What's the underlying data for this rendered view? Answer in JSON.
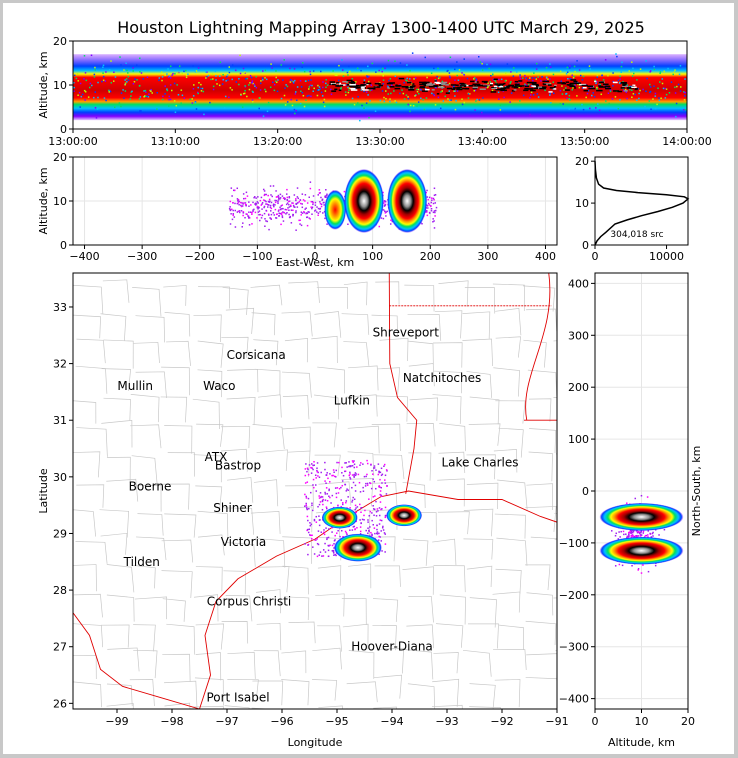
{
  "title": "Houston Lightning Mapping Array 1300-1400 UTC March 29, 2025",
  "colors": {
    "density_scale": [
      "#8000ff",
      "#0040ff",
      "#00c0ff",
      "#00e060",
      "#c0ff00",
      "#ffff00",
      "#ffa000",
      "#ff0000",
      "#a00000",
      "#000000",
      "#ffffff"
    ],
    "state_border": "#e00000",
    "county_border": "#c8c8c8",
    "coast": "#e00000"
  },
  "chart_data": [
    {
      "type": "heatmap",
      "name": "altitude_vs_time",
      "ylabel": "Altitude, km",
      "ylim": [
        0,
        20
      ],
      "y_ticks": [
        "0",
        "10",
        "20"
      ],
      "x_ticks": [
        "13:00:00",
        "13:10:00",
        "13:20:00",
        "13:30:00",
        "13:40:00",
        "13:50:00",
        "14:00:00"
      ],
      "core_altitude_km": [
        8,
        14
      ],
      "peak_density_interval": [
        "13:25:00",
        "13:55:00"
      ]
    },
    {
      "type": "heatmap",
      "name": "altitude_vs_east_west",
      "xlabel": "East-West, km",
      "ylabel": "Altitude, km",
      "xlim": [
        -420,
        420
      ],
      "ylim": [
        0,
        20
      ],
      "x_ticks": [
        "−400",
        "−300",
        "−200",
        "−100",
        "0",
        "100",
        "200",
        "300",
        "400"
      ],
      "y_ticks": [
        "0",
        "10",
        "20"
      ],
      "cores": [
        {
          "x_km": 85,
          "alt_km": 10
        },
        {
          "x_km": 160,
          "alt_km": 10
        },
        {
          "x_km": 35,
          "alt_km": 8
        }
      ]
    },
    {
      "type": "line",
      "name": "source_altitude_histogram",
      "x_ticks": [
        "0",
        "10000"
      ],
      "y_ticks": [
        "0",
        "10",
        "20"
      ],
      "xlim": [
        0,
        13000
      ],
      "ylim": [
        0,
        21
      ],
      "annotation": "304,018 src",
      "points": [
        [
          0,
          0
        ],
        [
          300,
          1
        ],
        [
          800,
          2
        ],
        [
          1500,
          3
        ],
        [
          2800,
          5
        ],
        [
          4500,
          6
        ],
        [
          6500,
          7
        ],
        [
          8800,
          8
        ],
        [
          10800,
          9
        ],
        [
          12300,
          10
        ],
        [
          13000,
          11
        ],
        [
          12500,
          11.5
        ],
        [
          10000,
          12
        ],
        [
          6000,
          12.5
        ],
        [
          3000,
          13
        ],
        [
          1200,
          13.6
        ],
        [
          500,
          14.5
        ],
        [
          200,
          16
        ],
        [
          60,
          18
        ],
        [
          0,
          20
        ]
      ]
    },
    {
      "type": "scatter",
      "name": "plan_view_map",
      "xlabel": "Longitude",
      "ylabel": "Latitude",
      "xlim": [
        -99.8,
        -91
      ],
      "ylim": [
        25.9,
        33.6
      ],
      "x_ticks": [
        "−99",
        "−98",
        "−97",
        "−96",
        "−95",
        "−94",
        "−93",
        "−92",
        "−91"
      ],
      "y_ticks": [
        "26",
        "27",
        "28",
        "29",
        "30",
        "31",
        "32",
        "33"
      ],
      "cells": [
        {
          "lon": -94.62,
          "lat": 28.75
        },
        {
          "lon": -93.78,
          "lat": 29.32
        },
        {
          "lon": -94.95,
          "lat": 29.28
        }
      ],
      "cities": [
        {
          "name": "Shreveport",
          "lon": -93.75,
          "lat": 32.55,
          "color": "#000000"
        },
        {
          "name": "Corsicana",
          "lon": -96.47,
          "lat": 32.15,
          "color": "#000000"
        },
        {
          "name": "Natchitoches",
          "lon": -93.09,
          "lat": 31.75,
          "color": "#000000"
        },
        {
          "name": "Mullin",
          "lon": -98.67,
          "lat": 31.6,
          "color": "#ff7f24"
        },
        {
          "name": "Waco",
          "lon": -97.14,
          "lat": 31.6,
          "color": "#000000"
        },
        {
          "name": "Lufkin",
          "lon": -94.73,
          "lat": 31.35,
          "color": "#000000"
        },
        {
          "name": "ATX",
          "lon": -97.2,
          "lat": 30.35,
          "color": "#ff7f24"
        },
        {
          "name": "Bastrop",
          "lon": -96.8,
          "lat": 30.2,
          "color": "#000000"
        },
        {
          "name": "Lake Charles",
          "lon": -92.4,
          "lat": 30.25,
          "color": "#000000"
        },
        {
          "name": "Boerne",
          "lon": -98.4,
          "lat": 29.83,
          "color": "#000000"
        },
        {
          "name": "Shiner",
          "lon": -96.9,
          "lat": 29.45,
          "color": "#000000"
        },
        {
          "name": "Victoria",
          "lon": -96.7,
          "lat": 28.85,
          "color": "#000000"
        },
        {
          "name": "Tilden",
          "lon": -98.55,
          "lat": 28.5,
          "color": "#000000"
        },
        {
          "name": "Corpus Christi",
          "lon": -96.6,
          "lat": 27.8,
          "color": "#000000"
        },
        {
          "name": "Hoover-Diana",
          "lon": -94.0,
          "lat": 27.0,
          "color": "#0000ff"
        },
        {
          "name": "Port Isabel",
          "lon": -96.8,
          "lat": 26.1,
          "color": "#000000"
        }
      ]
    },
    {
      "type": "heatmap",
      "name": "north_south_vs_altitude",
      "xlabel": "Altitude, km",
      "ylabel": "North-South, km",
      "xlim": [
        0,
        20
      ],
      "ylim": [
        -420,
        420
      ],
      "x_ticks": [
        "0",
        "10",
        "20"
      ],
      "y_ticks": [
        "−400",
        "−300",
        "−200",
        "−100",
        "0",
        "100",
        "200",
        "300",
        "400"
      ],
      "cores": [
        {
          "alt_km": 10,
          "ns_km": -50
        },
        {
          "alt_km": 10,
          "ns_km": -115
        }
      ]
    }
  ]
}
